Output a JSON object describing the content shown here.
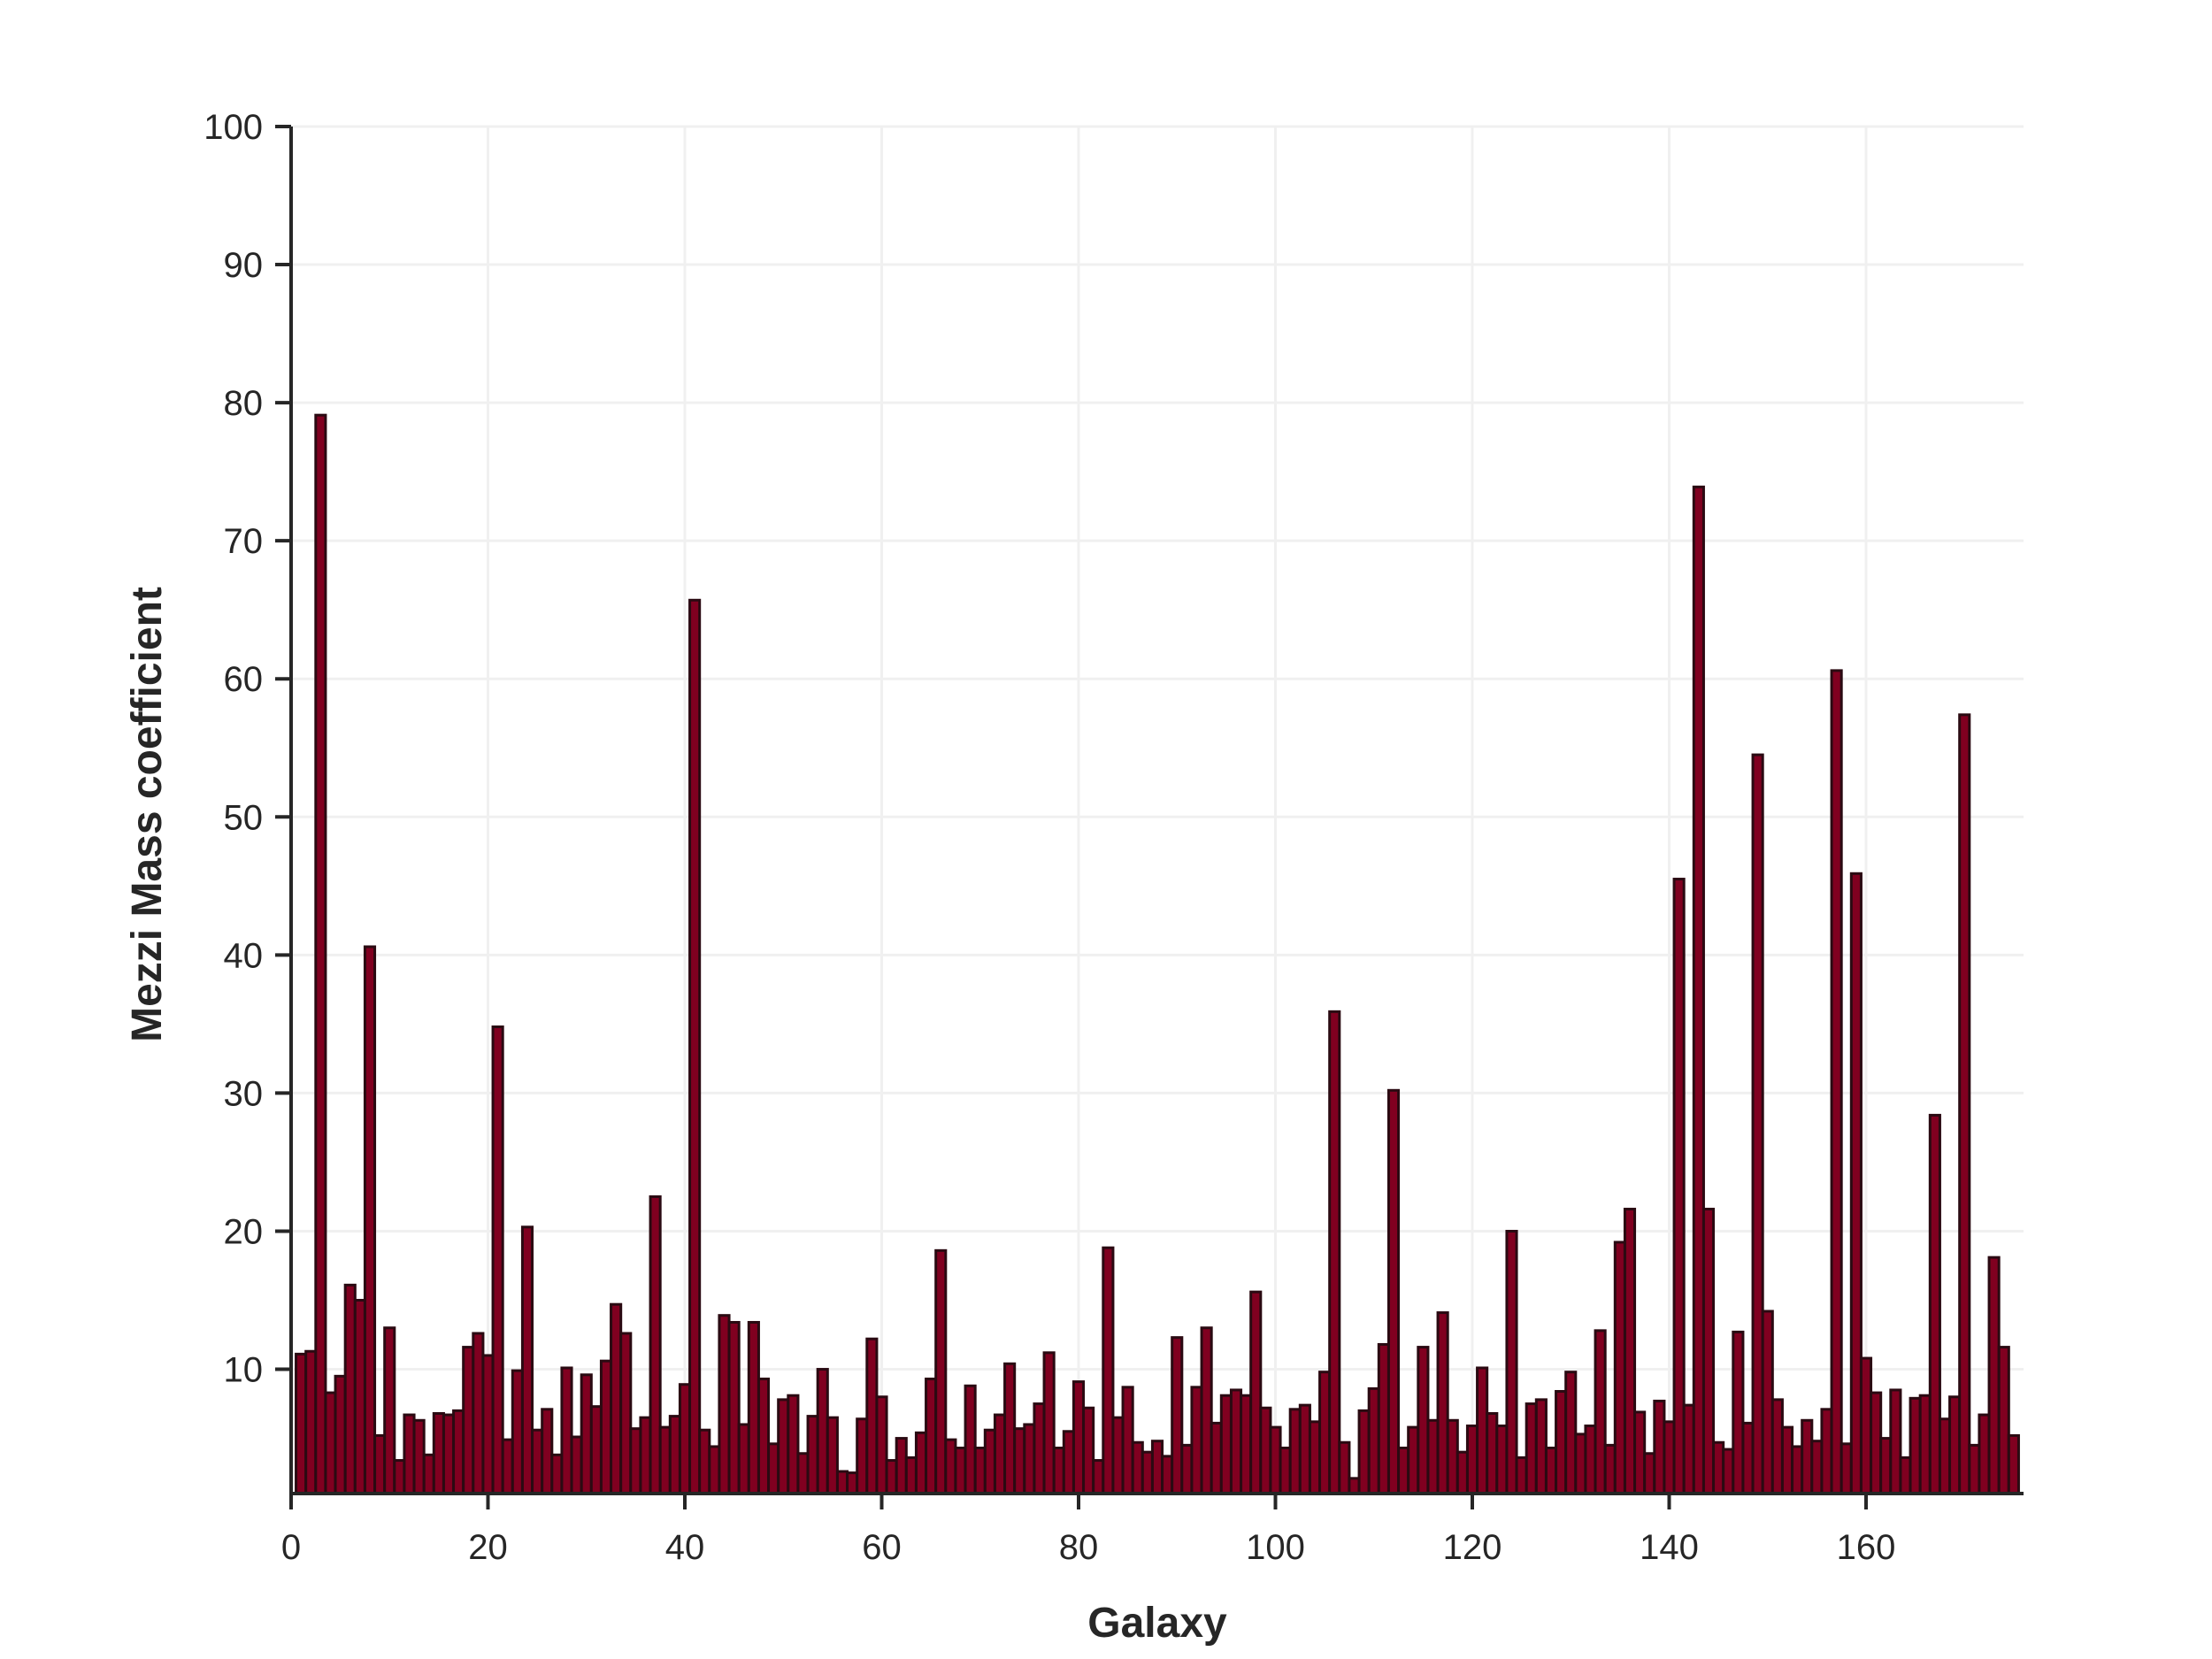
{
  "chart_data": {
    "type": "bar",
    "xlabel": "Galaxy",
    "ylabel": "Mezzi Mass coefficient",
    "xlim": [
      0,
      176
    ],
    "ylim": [
      1,
      100
    ],
    "xticks": [
      0,
      20,
      40,
      60,
      80,
      100,
      120,
      140,
      160
    ],
    "yticks": [
      10,
      20,
      30,
      40,
      50,
      60,
      70,
      80,
      90,
      100
    ],
    "grid": true,
    "bar_color": "#800020",
    "x": [
      1,
      2,
      3,
      4,
      5,
      6,
      7,
      8,
      9,
      10,
      11,
      12,
      13,
      14,
      15,
      16,
      17,
      18,
      19,
      20,
      21,
      22,
      23,
      24,
      25,
      26,
      27,
      28,
      29,
      30,
      31,
      32,
      33,
      34,
      35,
      36,
      37,
      38,
      39,
      40,
      41,
      42,
      43,
      44,
      45,
      46,
      47,
      48,
      49,
      50,
      51,
      52,
      53,
      54,
      55,
      56,
      57,
      58,
      59,
      60,
      61,
      62,
      63,
      64,
      65,
      66,
      67,
      68,
      69,
      70,
      71,
      72,
      73,
      74,
      75,
      76,
      77,
      78,
      79,
      80,
      81,
      82,
      83,
      84,
      85,
      86,
      87,
      88,
      89,
      90,
      91,
      92,
      93,
      94,
      95,
      96,
      97,
      98,
      99,
      100,
      101,
      102,
      103,
      104,
      105,
      106,
      107,
      108,
      109,
      110,
      111,
      112,
      113,
      114,
      115,
      116,
      117,
      118,
      119,
      120,
      121,
      122,
      123,
      124,
      125,
      126,
      127,
      128,
      129,
      130,
      131,
      132,
      133,
      134,
      135,
      136,
      137,
      138,
      139,
      140,
      141,
      142,
      143,
      144,
      145,
      146,
      147,
      148,
      149,
      150,
      151,
      152,
      153,
      154,
      155,
      156,
      157,
      158,
      159,
      160,
      161,
      162,
      163,
      164,
      165,
      166,
      167,
      168,
      169,
      170,
      171,
      172,
      173,
      174,
      175
    ],
    "values": [
      11.1,
      11.3,
      79.1,
      8.3,
      9.5,
      16.1,
      15.0,
      40.6,
      5.2,
      13.0,
      3.4,
      6.7,
      6.3,
      3.8,
      6.8,
      6.7,
      7.0,
      11.6,
      12.6,
      11.0,
      34.8,
      4.9,
      9.9,
      20.3,
      5.6,
      7.1,
      3.8,
      10.1,
      5.1,
      9.6,
      7.3,
      10.6,
      14.7,
      12.6,
      5.7,
      6.5,
      22.5,
      5.8,
      6.6,
      8.9,
      65.7,
      5.6,
      4.4,
      13.9,
      13.4,
      6.0,
      13.4,
      9.3,
      4.6,
      7.8,
      8.1,
      3.9,
      6.6,
      10.0,
      6.5,
      2.6,
      2.5,
      6.4,
      12.2,
      8.0,
      3.4,
      5.0,
      3.6,
      5.4,
      9.3,
      18.6,
      4.9,
      4.3,
      8.8,
      4.3,
      5.6,
      6.7,
      10.4,
      5.7,
      6.0,
      7.5,
      11.2,
      4.3,
      5.5,
      9.1,
      7.2,
      3.4,
      18.8,
      6.5,
      8.7,
      4.7,
      4.0,
      4.8,
      3.7,
      12.3,
      4.5,
      8.7,
      13.0,
      6.1,
      8.1,
      8.5,
      8.1,
      15.6,
      7.2,
      5.8,
      4.3,
      7.1,
      7.4,
      6.2,
      9.8,
      35.9,
      4.7,
      2.1,
      7.0,
      8.6,
      11.8,
      30.2,
      4.3,
      5.8,
      11.6,
      6.3,
      14.1,
      6.3,
      4.0,
      5.9,
      10.1,
      6.8,
      5.9,
      20.0,
      3.6,
      7.5,
      7.8,
      4.3,
      8.4,
      9.8,
      5.3,
      5.9,
      12.8,
      4.5,
      19.2,
      21.6,
      6.9,
      3.9,
      7.7,
      6.2,
      45.5,
      7.4,
      73.9,
      21.6,
      4.7,
      4.2,
      12.7,
      6.1,
      54.5,
      14.2,
      7.8,
      5.8,
      4.4,
      6.3,
      4.8,
      7.1,
      60.6,
      4.6,
      45.9,
      10.8,
      8.3,
      5.0,
      8.5,
      3.6,
      7.9,
      8.1,
      28.4,
      6.4,
      8.0,
      57.4,
      4.5,
      6.7,
      18.1,
      11.6,
      5.2
    ]
  }
}
